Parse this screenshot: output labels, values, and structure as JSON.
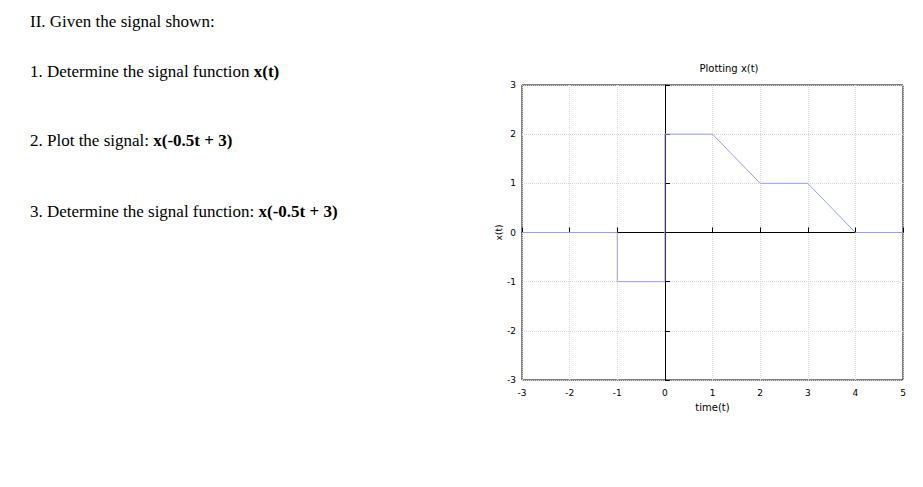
{
  "chart_data": {
    "type": "line",
    "title": "Plotting x(t)",
    "x_label": "time(t)",
    "y_label": "x(t)",
    "x": [
      -3,
      -1,
      -1,
      0,
      0,
      1,
      2,
      3,
      4,
      5
    ],
    "values": [
      0,
      0,
      -1,
      -1,
      2,
      2,
      1,
      1,
      0,
      0
    ],
    "color": "#9a9ef0",
    "xlim": [
      -3,
      5
    ],
    "xticks": [
      -3,
      -2,
      -1,
      0,
      1,
      2,
      3,
      4,
      5
    ],
    "ylim": [
      -3,
      3
    ],
    "yticks": [
      -3,
      -2,
      -1,
      0,
      1,
      2,
      3
    ],
    "grid": true
  },
  "text": [
    {
      "plain": "II. Given the signal shown:"
    },
    {
      "plain": "1. Determine the signal function ",
      "bold": "x(t)"
    },
    {
      "plain": "2. Plot the signal: ",
      "bold": "x(-0.5t + 3)"
    },
    {
      "plain": "3. Determine the signal function: ",
      "bold": "x(-0.5t + 3)"
    }
  ]
}
